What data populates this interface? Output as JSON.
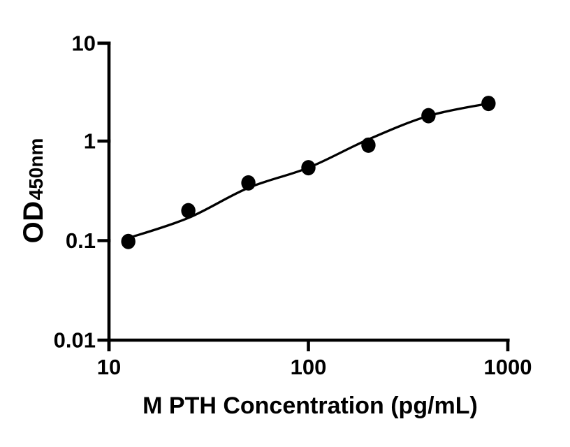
{
  "figure": {
    "background": "#ffffff",
    "ink": "#000000"
  },
  "chart_data": {
    "type": "scatter",
    "title": "",
    "xlabel": "M PTH Concentration (pg/mL)",
    "ylabel_main": "OD",
    "ylabel_sub": "450nm",
    "x_scale": "log10",
    "y_scale": "log10",
    "xlim": [
      10,
      1000
    ],
    "ylim": [
      0.01,
      10
    ],
    "x_tick_labels": [
      "10",
      "100",
      "1000"
    ],
    "y_tick_labels": [
      "10",
      "1",
      "0.1",
      "0.01"
    ],
    "grid": false,
    "legend": "none",
    "marker": "filled-circle",
    "series": [
      {
        "name": "standards",
        "type": "scatter",
        "color": "#000000",
        "x": [
          12.5,
          25,
          50,
          100,
          200,
          400,
          800
        ],
        "y": [
          0.098,
          0.2,
          0.38,
          0.54,
          0.91,
          1.8,
          2.39
        ]
      },
      {
        "name": "4pl-fit-curve",
        "type": "line",
        "color": "#000000",
        "x": [
          12.5,
          25,
          50,
          100,
          200,
          400,
          800
        ],
        "y": [
          0.106,
          0.169,
          0.339,
          0.54,
          1.04,
          1.79,
          2.39
        ]
      }
    ]
  }
}
